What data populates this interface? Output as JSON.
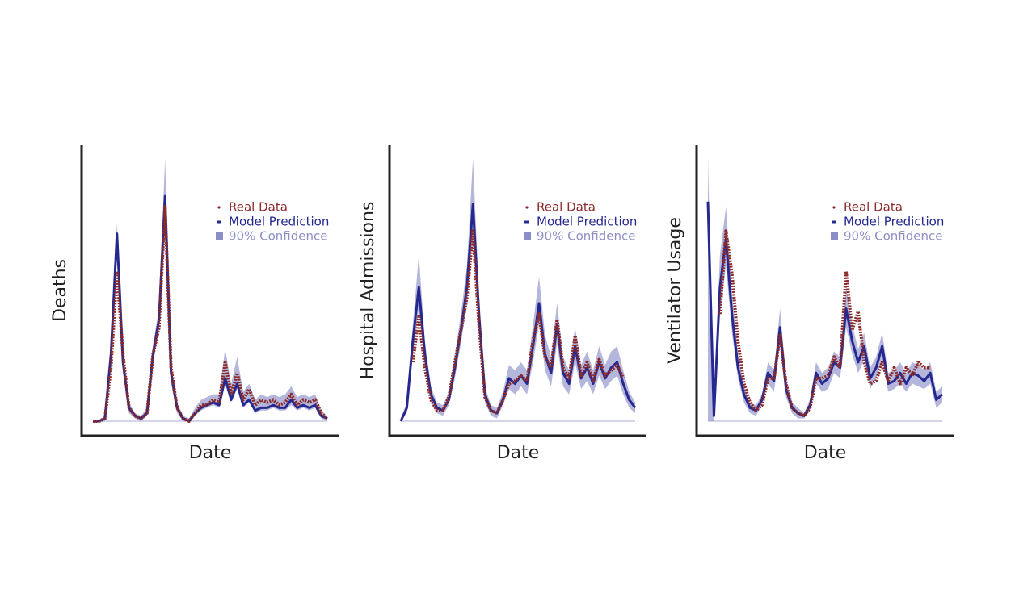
{
  "chart_data": [
    {
      "type": "line",
      "y_label": "Deaths",
      "x_label": "Date",
      "ylim": [
        0,
        100
      ],
      "legend": "upper right",
      "series": [
        {
          "name": "90% Confidence",
          "kind": "band",
          "color": "#8c8fc7",
          "upper": [
            0,
            0,
            2,
            28,
            74,
            26,
            7,
            3,
            2,
            5,
            29,
            42,
            98,
            22,
            7,
            2,
            1,
            5,
            8,
            9,
            10,
            10,
            27,
            14,
            24,
            11,
            14,
            8,
            10,
            9,
            10,
            9,
            10,
            13,
            9,
            10,
            9,
            10,
            4,
            2
          ],
          "lower": [
            0,
            0,
            0,
            20,
            64,
            18,
            3,
            1,
            0,
            2,
            22,
            33,
            78,
            14,
            3,
            0,
            0,
            2,
            4,
            5,
            6,
            5,
            14,
            7,
            12,
            5,
            7,
            3,
            4,
            4,
            5,
            4,
            4,
            6,
            4,
            5,
            4,
            5,
            1,
            0
          ]
        },
        {
          "name": "Model Prediction",
          "kind": "line",
          "color": "#25288f",
          "values": [
            0,
            0,
            1,
            25,
            70,
            22,
            5,
            2,
            1,
            3,
            25,
            38,
            84,
            18,
            5,
            1,
            0,
            3,
            5,
            6,
            7,
            6,
            16,
            8,
            14,
            6,
            8,
            4,
            5,
            5,
            6,
            5,
            5,
            8,
            5,
            6,
            5,
            6,
            2,
            1
          ]
        },
        {
          "name": "Real Data",
          "kind": "dotted",
          "color": "#8b2a2a",
          "values": [
            0,
            0,
            1,
            20,
            56,
            25,
            5,
            2,
            1,
            3,
            25,
            35,
            80,
            20,
            5,
            1,
            0,
            3,
            6,
            6,
            8,
            7,
            22,
            10,
            18,
            8,
            12,
            6,
            8,
            7,
            8,
            6,
            7,
            10,
            6,
            8,
            7,
            8,
            3,
            1
          ]
        }
      ]
    },
    {
      "type": "line",
      "y_label": "Hospital Admissions",
      "x_label": "Date",
      "ylim": [
        0,
        100
      ],
      "legend": "upper right",
      "series": [
        {
          "name": "90% Confidence",
          "kind": "band",
          "color": "#8c8fc7",
          "upper": [
            1,
            7,
            36,
            62,
            30,
            13,
            7,
            6,
            11,
            25,
            40,
            58,
            98,
            48,
            13,
            6,
            5,
            11,
            21,
            19,
            22,
            19,
            36,
            54,
            32,
            24,
            44,
            24,
            19,
            35,
            21,
            26,
            19,
            28,
            21,
            26,
            28,
            19,
            11,
            7
          ],
          "lower": [
            0,
            3,
            25,
            42,
            20,
            7,
            3,
            2,
            6,
            16,
            29,
            43,
            70,
            33,
            7,
            2,
            1,
            6,
            12,
            10,
            13,
            10,
            22,
            36,
            19,
            13,
            29,
            13,
            10,
            22,
            12,
            15,
            10,
            17,
            12,
            15,
            17,
            10,
            5,
            3
          ]
        },
        {
          "name": "Model Prediction",
          "kind": "line",
          "color": "#25288f",
          "values": [
            0,
            5,
            30,
            50,
            25,
            10,
            5,
            4,
            8,
            20,
            34,
            50,
            81,
            40,
            10,
            4,
            3,
            8,
            16,
            14,
            17,
            14,
            28,
            44,
            25,
            18,
            36,
            18,
            14,
            28,
            16,
            20,
            14,
            22,
            16,
            20,
            22,
            14,
            8,
            5
          ]
        },
        {
          "name": "Real Data",
          "kind": "dotted",
          "color": "#8b2a2a",
          "values": [
            null,
            null,
            22,
            39,
            20,
            8,
            4,
            4,
            9,
            22,
            34,
            46,
            71,
            36,
            9,
            4,
            3,
            8,
            14,
            15,
            17,
            15,
            30,
            40,
            24,
            20,
            38,
            20,
            16,
            32,
            17,
            22,
            15,
            23,
            17,
            19,
            21,
            16,
            null,
            null
          ]
        }
      ]
    },
    {
      "type": "line",
      "y_label": "Ventilator Usage",
      "x_label": "Date",
      "ylim": [
        0,
        100
      ],
      "legend": "upper right",
      "series": [
        {
          "name": "90% Confidence",
          "kind": "band",
          "color": "#8c8fc7",
          "upper": [
            98,
            5,
            62,
            80,
            48,
            25,
            13,
            7,
            6,
            10,
            22,
            19,
            42,
            16,
            7,
            5,
            3,
            8,
            22,
            18,
            20,
            26,
            24,
            50,
            36,
            27,
            33,
            20,
            24,
            33,
            18,
            19,
            22,
            18,
            22,
            21,
            19,
            22,
            11,
            13
          ],
          "lower": [
            0,
            0,
            40,
            58,
            33,
            16,
            7,
            3,
            2,
            6,
            14,
            11,
            29,
            9,
            3,
            1,
            1,
            4,
            14,
            11,
            12,
            18,
            16,
            35,
            25,
            18,
            23,
            12,
            16,
            23,
            11,
            12,
            14,
            11,
            14,
            13,
            12,
            14,
            5,
            7
          ]
        },
        {
          "name": "Model Prediction",
          "kind": "line",
          "color": "#25288f",
          "values": [
            82,
            2,
            50,
            68,
            40,
            20,
            10,
            5,
            4,
            8,
            18,
            15,
            35,
            12,
            5,
            3,
            2,
            6,
            18,
            14,
            16,
            22,
            20,
            42,
            30,
            22,
            28,
            16,
            20,
            28,
            14,
            15,
            18,
            14,
            18,
            17,
            15,
            18,
            8,
            10
          ]
        },
        {
          "name": "Real Data",
          "kind": "dotted",
          "color": "#8b2a2a",
          "values": [
            null,
            null,
            40,
            71,
            55,
            30,
            14,
            7,
            4,
            6,
            16,
            16,
            32,
            14,
            5,
            3,
            2,
            5,
            16,
            16,
            17,
            24,
            20,
            56,
            34,
            41,
            22,
            14,
            15,
            22,
            15,
            20,
            14,
            20,
            17,
            22,
            20,
            20,
            null,
            null
          ]
        }
      ]
    }
  ]
}
